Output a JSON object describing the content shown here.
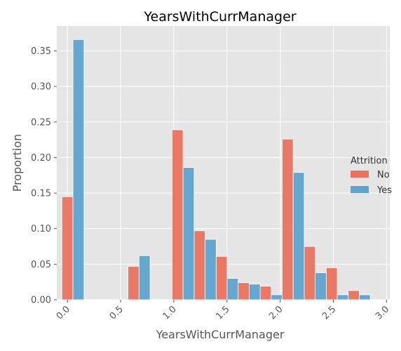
{
  "chart_data": {
    "type": "bar",
    "title": "YearsWithCurrManager",
    "xlabel": "YearsWithCurrManager",
    "ylabel": "Proportion",
    "xlim": [
      -0.1,
      3.03
    ],
    "ylim": [
      0,
      0.385
    ],
    "grid": true,
    "legend_position": "right",
    "legend_title": "Attrition",
    "x_ticks": [
      "0.0",
      "0.5",
      "1.0",
      "1.5",
      "2.0",
      "2.5",
      "3.0"
    ],
    "x_tick_values": [
      0.0,
      0.5,
      1.0,
      1.5,
      2.0,
      2.5,
      3.0
    ],
    "y_ticks": [
      "0.00",
      "0.05",
      "0.10",
      "0.15",
      "0.20",
      "0.25",
      "0.30",
      "0.35"
    ],
    "y_tick_values": [
      0.0,
      0.05,
      0.1,
      0.15,
      0.2,
      0.25,
      0.3,
      0.35
    ],
    "bar_width": 0.052,
    "series": [
      {
        "name": "No",
        "color": "#e8735f",
        "bars": [
          {
            "x": 0.0,
            "value": 0.145
          },
          {
            "x": 0.621,
            "value": 0.047
          },
          {
            "x": 1.035,
            "value": 0.239
          },
          {
            "x": 1.242,
            "value": 0.097
          },
          {
            "x": 1.449,
            "value": 0.061
          },
          {
            "x": 1.656,
            "value": 0.024
          },
          {
            "x": 1.863,
            "value": 0.019
          },
          {
            "x": 2.07,
            "value": 0.226
          },
          {
            "x": 2.277,
            "value": 0.075
          },
          {
            "x": 2.484,
            "value": 0.045
          },
          {
            "x": 2.691,
            "value": 0.013
          }
        ]
      },
      {
        "name": "Yes",
        "color": "#5fa3cf",
        "bars": [
          {
            "x": 0.104,
            "value": 0.366
          },
          {
            "x": 0.725,
            "value": 0.062
          },
          {
            "x": 1.139,
            "value": 0.186
          },
          {
            "x": 1.346,
            "value": 0.085
          },
          {
            "x": 1.553,
            "value": 0.03
          },
          {
            "x": 1.76,
            "value": 0.022
          },
          {
            "x": 1.967,
            "value": 0.007
          },
          {
            "x": 2.174,
            "value": 0.179
          },
          {
            "x": 2.381,
            "value": 0.038
          },
          {
            "x": 2.588,
            "value": 0.007
          },
          {
            "x": 2.795,
            "value": 0.007
          }
        ]
      }
    ]
  },
  "colors": {
    "panel_background": "#e5e5e5",
    "grid": "#ffffff",
    "text": "#555555"
  }
}
